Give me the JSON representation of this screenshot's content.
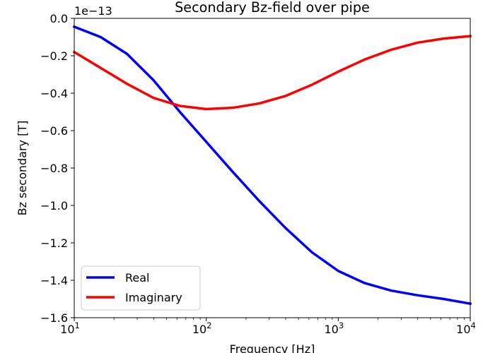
{
  "chart_data": {
    "type": "line",
    "title": "Secondary Bz-field over pipe",
    "xlabel": "Frequency [Hz]",
    "ylabel": "Bz secondary [T]",
    "y_offset_label": "1e−13",
    "x_scale": "log",
    "xlim": [
      10,
      10000
    ],
    "ylim": [
      -1.6,
      0.0
    ],
    "x_ticks": [
      {
        "value": 10,
        "base": "10",
        "exp": "1"
      },
      {
        "value": 100,
        "base": "10",
        "exp": "2"
      },
      {
        "value": 1000,
        "base": "10",
        "exp": "3"
      },
      {
        "value": 10000,
        "base": "10",
        "exp": "4"
      }
    ],
    "y_ticks": [
      {
        "value": 0.0,
        "label": "0.0"
      },
      {
        "value": -0.2,
        "label": "−0.2"
      },
      {
        "value": -0.4,
        "label": "−0.4"
      },
      {
        "value": -0.6,
        "label": "−0.6"
      },
      {
        "value": -0.8,
        "label": "−0.8"
      },
      {
        "value": -1.0,
        "label": "−1.0"
      },
      {
        "value": -1.2,
        "label": "−1.2"
      },
      {
        "value": -1.4,
        "label": "−1.4"
      },
      {
        "value": -1.6,
        "label": "−1.6"
      }
    ],
    "grid": false,
    "legend_position": "lower-left",
    "x": [
      10,
      15.85,
      25.12,
      39.81,
      63.1,
      100,
      158.5,
      251.2,
      398.1,
      631,
      1000,
      1585,
      2512,
      3981,
      6310,
      10000
    ],
    "series": [
      {
        "name": "Real",
        "color": "#0000ff",
        "values": [
          -0.045,
          -0.1,
          -0.19,
          -0.33,
          -0.5,
          -0.66,
          -0.82,
          -0.975,
          -1.12,
          -1.25,
          -1.35,
          -1.415,
          -1.455,
          -1.48,
          -1.5,
          -1.525
        ]
      },
      {
        "name": "Imaginary",
        "color": "#ff0000",
        "values": [
          -0.18,
          -0.265,
          -0.35,
          -0.425,
          -0.468,
          -0.485,
          -0.478,
          -0.455,
          -0.415,
          -0.355,
          -0.285,
          -0.22,
          -0.168,
          -0.13,
          -0.108,
          -0.095
        ]
      }
    ]
  }
}
